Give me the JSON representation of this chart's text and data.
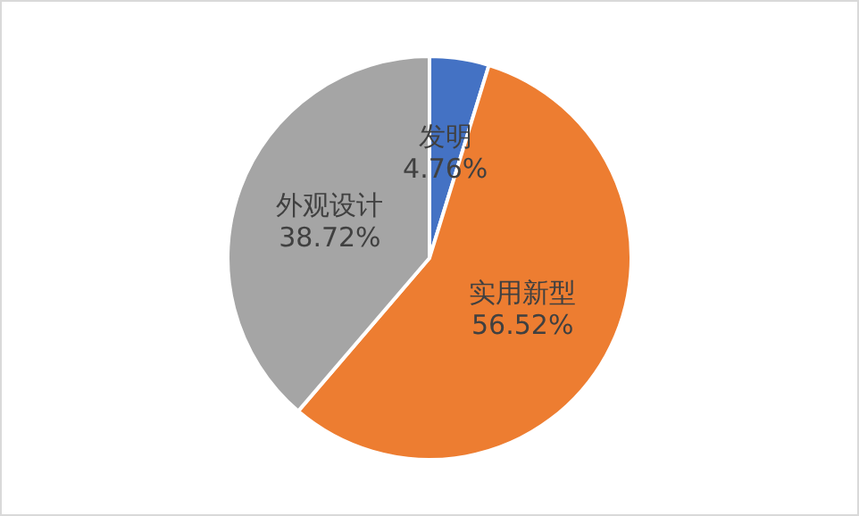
{
  "chart_data": {
    "type": "pie",
    "categories": [
      "发明",
      "实用新型",
      "外观设计"
    ],
    "values": [
      4.76,
      56.52,
      38.72
    ],
    "colors": [
      "#4472c4",
      "#ed7d31",
      "#a5a5a5"
    ],
    "value_labels": [
      "4.76%",
      "56.52%",
      "38.72%"
    ]
  }
}
